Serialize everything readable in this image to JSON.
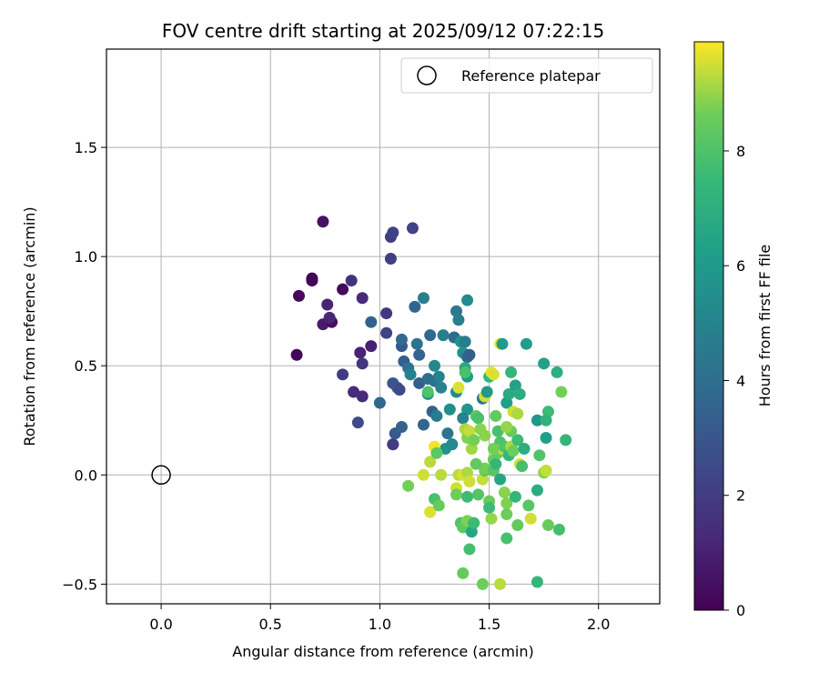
{
  "chart_data": {
    "type": "scatter",
    "title": "FOV centre drift starting at 2025/09/12 07:22:15",
    "xlabel": "Angular distance from reference (arcmin)",
    "ylabel": "Rotation from reference (arcmin)",
    "xlim": [
      -0.25,
      2.28
    ],
    "ylim": [
      -0.59,
      1.95
    ],
    "xticks": [
      0.0,
      0.5,
      1.0,
      1.5,
      2.0
    ],
    "xtick_labels": [
      "0.0",
      "0.5",
      "1.0",
      "1.5",
      "2.0"
    ],
    "yticks": [
      -0.5,
      0.0,
      0.5,
      1.0,
      1.5
    ],
    "ytick_labels": [
      "−0.5",
      "0.0",
      "0.5",
      "1.0",
      "1.5"
    ],
    "grid": true,
    "legend": {
      "position": "top-right",
      "entries": [
        "Reference platepar"
      ]
    },
    "reference_point": {
      "x": 0.0,
      "y": 0.0,
      "label": "Reference platepar"
    },
    "colorbar": {
      "label": "Hours from first FF file",
      "min": 0,
      "max": 9.9,
      "ticks": [
        0,
        2,
        4,
        6,
        8
      ],
      "tick_labels": [
        "0",
        "2",
        "4",
        "6",
        "8"
      ],
      "colormap": "viridis"
    },
    "points": [
      [
        0.62,
        0.55,
        0.2
      ],
      [
        0.63,
        0.82,
        0.3
      ],
      [
        0.69,
        0.9,
        0.1
      ],
      [
        0.69,
        0.89,
        0.15
      ],
      [
        0.74,
        1.16,
        0.5
      ],
      [
        0.74,
        0.69,
        0.8
      ],
      [
        0.78,
        0.7,
        0.4
      ],
      [
        0.77,
        0.72,
        1.2
      ],
      [
        0.76,
        0.78,
        1.1
      ],
      [
        0.83,
        0.85,
        0.3
      ],
      [
        0.87,
        0.89,
        1.6
      ],
      [
        0.92,
        0.81,
        1.3
      ],
      [
        0.83,
        0.46,
        2.0
      ],
      [
        0.88,
        0.38,
        1.4
      ],
      [
        0.91,
        0.56,
        1.1
      ],
      [
        0.92,
        0.51,
        1.8
      ],
      [
        0.92,
        0.36,
        1.4
      ],
      [
        0.96,
        0.59,
        1.0
      ],
      [
        0.9,
        0.24,
        2.5
      ],
      [
        0.96,
        0.7,
        3.5
      ],
      [
        1.0,
        0.33,
        3.7
      ],
      [
        1.03,
        0.74,
        1.8
      ],
      [
        1.03,
        0.65,
        2.3
      ],
      [
        1.05,
        0.99,
        2.1
      ],
      [
        1.05,
        1.09,
        2.0
      ],
      [
        1.06,
        1.11,
        2.2
      ],
      [
        1.15,
        1.13,
        2.2
      ],
      [
        1.06,
        0.42,
        3.0
      ],
      [
        1.06,
        0.14,
        1.8
      ],
      [
        1.06,
        0.14,
        2.0
      ],
      [
        1.07,
        0.19,
        3.2
      ],
      [
        1.08,
        0.4,
        2.9
      ],
      [
        1.09,
        0.39,
        2.5
      ],
      [
        1.1,
        0.59,
        3.1
      ],
      [
        1.1,
        0.62,
        3.8
      ],
      [
        1.1,
        0.22,
        3.5
      ],
      [
        1.11,
        0.52,
        3.3
      ],
      [
        1.13,
        0.49,
        4.2
      ],
      [
        1.14,
        0.46,
        5.0
      ],
      [
        1.16,
        0.77,
        3.6
      ],
      [
        1.17,
        0.6,
        4.3
      ],
      [
        1.18,
        0.55,
        3.6
      ],
      [
        1.18,
        0.42,
        3.4
      ],
      [
        1.2,
        0.81,
        4.8
      ],
      [
        1.2,
        0.23,
        3.6
      ],
      [
        1.22,
        0.44,
        3.9
      ],
      [
        1.22,
        0.37,
        5.8
      ],
      [
        1.23,
        0.64,
        3.7
      ],
      [
        1.24,
        0.29,
        3.4
      ],
      [
        1.25,
        0.5,
        5.2
      ],
      [
        1.25,
        0.43,
        4.1
      ],
      [
        1.26,
        0.27,
        4.6
      ],
      [
        1.27,
        0.45,
        5.0
      ],
      [
        1.28,
        0.4,
        5.0
      ],
      [
        1.29,
        0.64,
        4.7
      ],
      [
        1.3,
        0.12,
        5.7
      ],
      [
        1.31,
        0.19,
        4.4
      ],
      [
        1.32,
        0.3,
        5.5
      ],
      [
        1.33,
        0.14,
        4.2
      ],
      [
        1.33,
        0.14,
        5.3
      ],
      [
        1.34,
        0.63,
        3.9
      ],
      [
        1.35,
        0.75,
        4.5
      ],
      [
        1.36,
        0.71,
        4.7
      ],
      [
        1.37,
        0.61,
        5.6
      ],
      [
        1.38,
        0.56,
        5.6
      ],
      [
        1.39,
        0.61,
        4.6
      ],
      [
        1.4,
        0.8,
        5.4
      ],
      [
        1.4,
        0.54,
        3.8
      ],
      [
        1.4,
        0.45,
        6.0
      ],
      [
        1.4,
        0.3,
        5.8
      ],
      [
        1.41,
        0.55,
        3.4
      ],
      [
        1.39,
        0.49,
        6.7
      ],
      [
        1.38,
        0.26,
        5.0
      ],
      [
        1.35,
        0.38,
        5.3
      ],
      [
        1.36,
        0.4,
        9.6
      ],
      [
        1.39,
        0.47,
        7.9
      ],
      [
        1.39,
        0.21,
        9.2
      ],
      [
        1.4,
        0.17,
        8.8
      ],
      [
        1.41,
        0.2,
        9.4
      ],
      [
        1.42,
        0.12,
        9.1
      ],
      [
        1.43,
        0.16,
        8.7
      ],
      [
        1.44,
        0.27,
        8.3
      ],
      [
        1.45,
        0.26,
        7.9
      ],
      [
        1.46,
        0.21,
        8.9
      ],
      [
        1.47,
        0.35,
        4.4
      ],
      [
        1.48,
        0.36,
        9.5
      ],
      [
        1.49,
        0.38,
        6.0
      ],
      [
        1.5,
        0.45,
        7.4
      ],
      [
        1.51,
        0.47,
        9.7
      ],
      [
        1.52,
        0.46,
        9.6
      ],
      [
        1.53,
        0.27,
        8.4
      ],
      [
        1.54,
        0.2,
        7.9
      ],
      [
        1.55,
        0.6,
        9.8
      ],
      [
        1.56,
        0.6,
        6.0
      ],
      [
        1.58,
        0.33,
        6.2
      ],
      [
        1.59,
        0.37,
        6.8
      ],
      [
        1.6,
        0.47,
        7.4
      ],
      [
        1.61,
        0.29,
        9.5
      ],
      [
        1.62,
        0.41,
        6.4
      ],
      [
        1.63,
        0.28,
        9.2
      ],
      [
        1.64,
        0.37,
        6.9
      ],
      [
        1.67,
        0.6,
        6.2
      ],
      [
        1.72,
        0.25,
        5.9
      ],
      [
        1.75,
        0.51,
        6.4
      ],
      [
        1.76,
        0.17,
        6.3
      ],
      [
        1.77,
        0.29,
        7.6
      ],
      [
        1.76,
        0.25,
        7.2
      ],
      [
        1.81,
        0.47,
        7.0
      ],
      [
        1.83,
        0.38,
        8.7
      ],
      [
        1.85,
        0.16,
        7.4
      ],
      [
        1.22,
        0.38,
        8.0
      ],
      [
        1.23,
        0.06,
        9.3
      ],
      [
        1.25,
        0.13,
        9.8
      ],
      [
        1.26,
        0.1,
        8.3
      ],
      [
        1.2,
        -0.0,
        9.5
      ],
      [
        1.28,
        -0.0,
        9.3
      ],
      [
        1.23,
        -0.17,
        9.6
      ],
      [
        1.25,
        -0.11,
        7.9
      ],
      [
        1.27,
        -0.14,
        8.5
      ],
      [
        1.13,
        -0.05,
        8.7
      ],
      [
        1.35,
        -0.06,
        9.5
      ],
      [
        1.35,
        -0.09,
        8.6
      ],
      [
        1.36,
        -0.0,
        9.3
      ],
      [
        1.38,
        -0.0,
        9.6
      ],
      [
        1.4,
        0.01,
        9.2
      ],
      [
        1.41,
        -0.03,
        9.5
      ],
      [
        1.37,
        -0.22,
        8.0
      ],
      [
        1.38,
        -0.24,
        8.3
      ],
      [
        1.4,
        -0.21,
        8.8
      ],
      [
        1.41,
        -0.34,
        7.8
      ],
      [
        1.42,
        -0.26,
        6.6
      ],
      [
        1.43,
        -0.22,
        7.6
      ],
      [
        1.38,
        -0.45,
        8.5
      ],
      [
        1.47,
        -0.5,
        8.6
      ],
      [
        1.55,
        -0.5,
        9.3
      ],
      [
        1.72,
        -0.49,
        7.4
      ],
      [
        1.4,
        -0.1,
        7.6
      ],
      [
        1.45,
        -0.09,
        8.1
      ],
      [
        1.47,
        -0.02,
        9.4
      ],
      [
        1.48,
        0.02,
        8.3
      ],
      [
        1.48,
        0.03,
        8.7
      ],
      [
        1.5,
        -0.12,
        8.5
      ],
      [
        1.5,
        -0.15,
        7.6
      ],
      [
        1.51,
        -0.2,
        9.0
      ],
      [
        1.52,
        0.02,
        8.2
      ],
      [
        1.52,
        0.07,
        8.6
      ],
      [
        1.53,
        0.05,
        7.4
      ],
      [
        1.54,
        0.1,
        8.5
      ],
      [
        1.55,
        -0.02,
        6.6
      ],
      [
        1.55,
        0.15,
        8.0
      ],
      [
        1.56,
        0.12,
        9.3
      ],
      [
        1.57,
        0.13,
        8.0
      ],
      [
        1.57,
        -0.08,
        8.9
      ],
      [
        1.58,
        -0.13,
        8.8
      ],
      [
        1.58,
        -0.18,
        8.6
      ],
      [
        1.58,
        -0.29,
        7.9
      ],
      [
        1.59,
        0.09,
        7.4
      ],
      [
        1.6,
        0.13,
        9.2
      ],
      [
        1.61,
        0.11,
        8.6
      ],
      [
        1.62,
        -0.1,
        7.4
      ],
      [
        1.63,
        -0.23,
        8.4
      ],
      [
        1.63,
        0.16,
        7.6
      ],
      [
        1.64,
        0.05,
        9.6
      ],
      [
        1.65,
        0.04,
        7.8
      ],
      [
        1.66,
        0.12,
        7.0
      ],
      [
        1.68,
        -0.14,
        8.2
      ],
      [
        1.69,
        -0.2,
        9.5
      ],
      [
        1.72,
        -0.07,
        6.9
      ],
      [
        1.73,
        0.09,
        8.0
      ],
      [
        1.75,
        0.01,
        8.9
      ],
      [
        1.76,
        0.02,
        9.4
      ],
      [
        1.77,
        -0.23,
        8.5
      ],
      [
        1.82,
        -0.25,
        7.8
      ],
      [
        1.6,
        0.2,
        8.5
      ],
      [
        1.58,
        0.22,
        9.0
      ],
      [
        1.52,
        0.12,
        8.7
      ],
      [
        1.48,
        0.18,
        8.9
      ],
      [
        1.44,
        0.05,
        8.4
      ]
    ]
  }
}
